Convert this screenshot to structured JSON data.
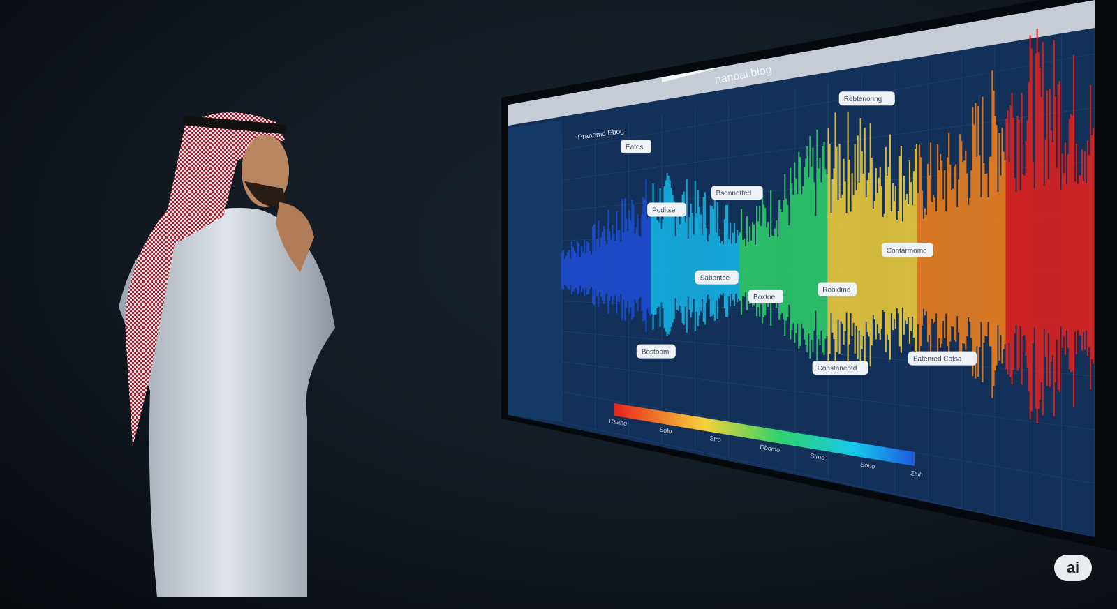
{
  "screen": {
    "url": "nanoai.blog",
    "sidebar_title": "Pranomd Ebog",
    "callouts": [
      "Rebtenoring",
      "Eatos",
      "Poditse",
      "Bsonnotted",
      "Sabontce",
      "Boxtoe",
      "Reoidmo",
      "Contarmomo",
      "Constaneotd",
      "Bostoom",
      "Eatenred Cotsa"
    ],
    "colorbar_labels": [
      "Rsano",
      "Solo",
      "Stro",
      "Dbomo",
      "Stmo",
      "Sono",
      "Zaih"
    ],
    "waveform_colors": [
      "#1e4fd8",
      "#16b8e8",
      "#2fd36a",
      "#f5d23a",
      "#f5841e",
      "#e8231e"
    ]
  },
  "watermark": "ai"
}
